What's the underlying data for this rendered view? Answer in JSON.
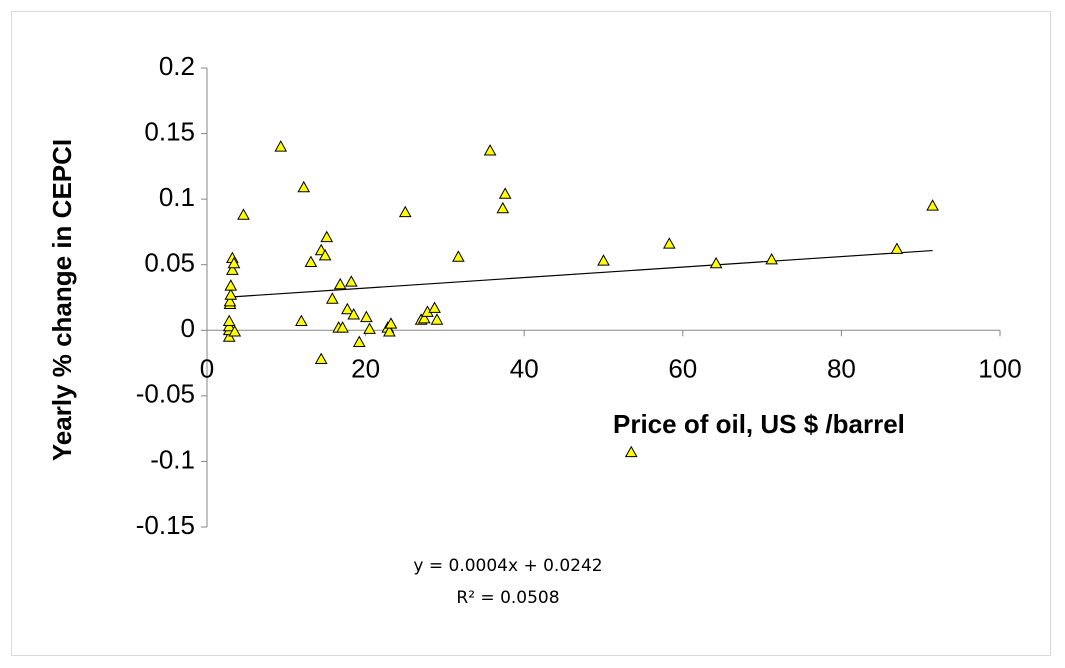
{
  "chart_data": {
    "type": "scatter",
    "title": "",
    "xlabel": "Price of oil, US $ /barrel",
    "ylabel": "Yearly % change in CEPCI",
    "xlim": [
      0,
      100
    ],
    "ylim": [
      -0.15,
      0.2
    ],
    "x_ticks": [
      "0",
      "20",
      "40",
      "60",
      "80",
      "100"
    ],
    "y_ticks": [
      "-0.15",
      "-0.1",
      "-0.05",
      "0",
      "0.05",
      "0.1",
      "0.15",
      "0.2"
    ],
    "marker": {
      "shape": "triangle",
      "fill": "#ffff00",
      "stroke": "#000000"
    },
    "series": [
      {
        "points": [
          {
            "x": 2.8,
            "y": -0.005
          },
          {
            "x": 2.8,
            "y": 0.0
          },
          {
            "x": 2.8,
            "y": 0.003
          },
          {
            "x": 2.8,
            "y": 0.007
          },
          {
            "x": 2.9,
            "y": 0.02
          },
          {
            "x": 2.9,
            "y": 0.022
          },
          {
            "x": 3.0,
            "y": 0.027
          },
          {
            "x": 3.0,
            "y": 0.034
          },
          {
            "x": 3.2,
            "y": 0.046
          },
          {
            "x": 3.2,
            "y": 0.055
          },
          {
            "x": 3.4,
            "y": 0.051
          },
          {
            "x": 3.5,
            "y": -0.001
          },
          {
            "x": 4.6,
            "y": 0.088
          },
          {
            "x": 9.3,
            "y": 0.14
          },
          {
            "x": 11.9,
            "y": 0.007
          },
          {
            "x": 12.2,
            "y": 0.109
          },
          {
            "x": 13.1,
            "y": 0.052
          },
          {
            "x": 14.4,
            "y": -0.022
          },
          {
            "x": 14.4,
            "y": 0.061
          },
          {
            "x": 14.9,
            "y": 0.057
          },
          {
            "x": 15.1,
            "y": 0.071
          },
          {
            "x": 15.8,
            "y": 0.024
          },
          {
            "x": 16.6,
            "y": 0.002
          },
          {
            "x": 16.8,
            "y": 0.035
          },
          {
            "x": 17.1,
            "y": 0.002
          },
          {
            "x": 17.7,
            "y": 0.016
          },
          {
            "x": 18.2,
            "y": 0.037
          },
          {
            "x": 18.5,
            "y": 0.012
          },
          {
            "x": 19.2,
            "y": -0.009
          },
          {
            "x": 20.1,
            "y": 0.01
          },
          {
            "x": 20.5,
            "y": 0.001
          },
          {
            "x": 22.8,
            "y": 0.002
          },
          {
            "x": 23.0,
            "y": -0.001
          },
          {
            "x": 23.2,
            "y": 0.005
          },
          {
            "x": 25.0,
            "y": 0.09
          },
          {
            "x": 27.0,
            "y": 0.008
          },
          {
            "x": 27.4,
            "y": 0.009
          },
          {
            "x": 27.8,
            "y": 0.014
          },
          {
            "x": 28.7,
            "y": 0.017
          },
          {
            "x": 29.0,
            "y": 0.008
          },
          {
            "x": 31.7,
            "y": 0.056
          },
          {
            "x": 35.7,
            "y": 0.137
          },
          {
            "x": 37.3,
            "y": 0.093
          },
          {
            "x": 37.6,
            "y": 0.104
          },
          {
            "x": 50.0,
            "y": 0.053
          },
          {
            "x": 53.5,
            "y": -0.093
          },
          {
            "x": 58.3,
            "y": 0.066
          },
          {
            "x": 64.2,
            "y": 0.051
          },
          {
            "x": 71.2,
            "y": 0.054
          },
          {
            "x": 87.0,
            "y": 0.062
          },
          {
            "x": 91.5,
            "y": 0.095
          }
        ]
      }
    ],
    "trendline": {
      "slope": 0.0004,
      "intercept": 0.0242,
      "x_range": [
        3,
        91.5
      ],
      "equation": "y = 0.0004x + 0.0242",
      "r_squared": "R² = 0.0508"
    },
    "grid": false,
    "legend": "none"
  }
}
